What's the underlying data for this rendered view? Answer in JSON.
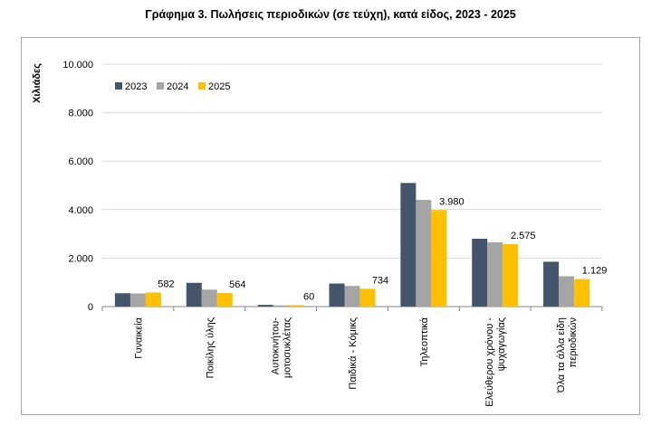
{
  "page": {
    "title": "Γράφημα 3. Πωλήσεις περιοδικών (σε τεύχη), κατά είδος, 2023 - 2025"
  },
  "chart_data": {
    "type": "bar",
    "title": "Γράφημα 3. Πωλήσεις περιοδικών (σε τεύχη), κατά είδος, 2023 - 2025",
    "ylabel": "Χιλιάδες",
    "xlabel": "",
    "ylim": [
      0,
      10000
    ],
    "yticks": [
      0,
      2000,
      4000,
      6000,
      8000,
      10000
    ],
    "ytick_labels": [
      "0",
      "2.000",
      "4.000",
      "6.000",
      "8.000",
      "10.000"
    ],
    "grid": true,
    "legend_position": "top-left",
    "categories": [
      [
        "Γυναικεία"
      ],
      [
        "Ποικίλης ύλης"
      ],
      [
        "Αυτοκινήτου-",
        "μοτοσυκλέτας"
      ],
      [
        "Παιδικά - Κόμικς"
      ],
      [
        "Τηλεοπτικά"
      ],
      [
        "Ελεύθερου χρόνου -",
        "ψυχαγωγίας"
      ],
      [
        "Όλα τα άλλα είδη",
        "περιοδικών"
      ]
    ],
    "series": [
      {
        "name": "2023",
        "color": "#44546a",
        "values": [
          550,
          980,
          70,
          950,
          5100,
          2800,
          1850
        ]
      },
      {
        "name": "2024",
        "color": "#a5a5a5",
        "values": [
          540,
          700,
          50,
          850,
          4400,
          2650,
          1250
        ]
      },
      {
        "name": "2025",
        "color": "#ffc000",
        "values": [
          582,
          564,
          60,
          734,
          3980,
          2575,
          1129
        ]
      }
    ],
    "data_labels": {
      "series": "2025",
      "labels": [
        "582",
        "564",
        "60",
        "734",
        "3.980",
        "2.575",
        "1.129"
      ]
    }
  }
}
